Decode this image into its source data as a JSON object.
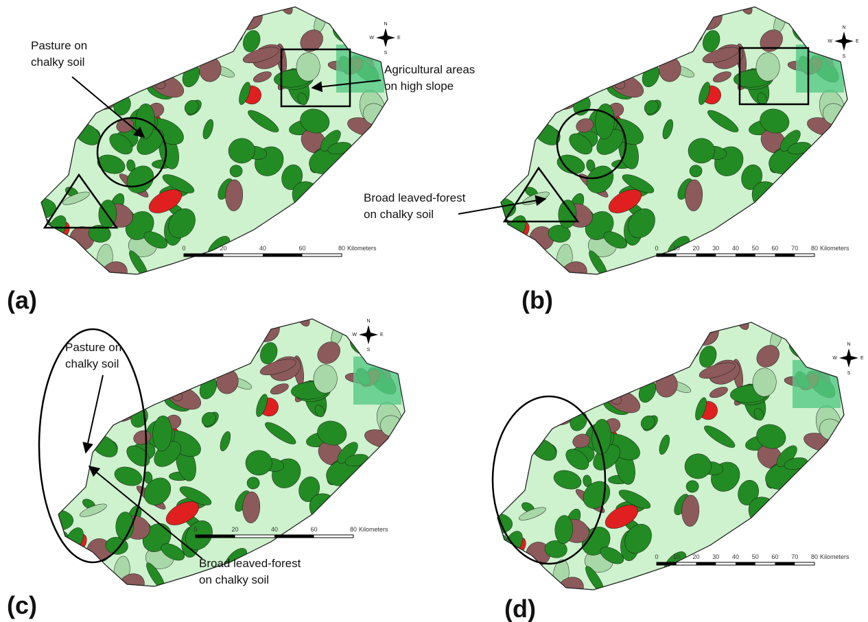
{
  "panels": [
    {
      "label": "(a)",
      "annotations": [
        {
          "text": [
            "Pasture on",
            "chalky soil"
          ]
        },
        {
          "text": [
            "Agricultural areas",
            "on high slope"
          ]
        }
      ],
      "scale": {
        "ticks": [
          "0",
          "20",
          "40",
          "60",
          "80"
        ],
        "unit": "Kilometers"
      },
      "compass": [
        "N",
        "W",
        "E",
        "S"
      ]
    },
    {
      "label": "(b)",
      "annotations": [
        {
          "text": [
            "Broad leaved-forest",
            "on chalky soil"
          ]
        }
      ],
      "scale": {
        "ticks": [
          "0",
          "10",
          "20",
          "30",
          "40",
          "50",
          "60",
          "70",
          "80"
        ],
        "unit": "Kilometers"
      },
      "compass": [
        "N",
        "W",
        "E",
        "S"
      ]
    },
    {
      "label": "(c)",
      "annotations": [
        {
          "text": [
            "Pasture on",
            "chalky soil"
          ]
        },
        {
          "text": [
            "Broad leaved-forest",
            "on chalky soil"
          ]
        }
      ],
      "scale": {
        "ticks": [
          "0",
          "20",
          "40",
          "60",
          "80"
        ],
        "unit": "Kilometers"
      },
      "compass": [
        "N",
        "W",
        "E",
        "S"
      ]
    },
    {
      "label": "(d)",
      "annotations": [],
      "scale": {
        "ticks": [
          "0",
          "10",
          "20",
          "30",
          "40",
          "50",
          "60",
          "70",
          "80"
        ],
        "unit": "Kilometers"
      },
      "compass": [
        "N",
        "W",
        "E",
        "S"
      ]
    }
  ]
}
